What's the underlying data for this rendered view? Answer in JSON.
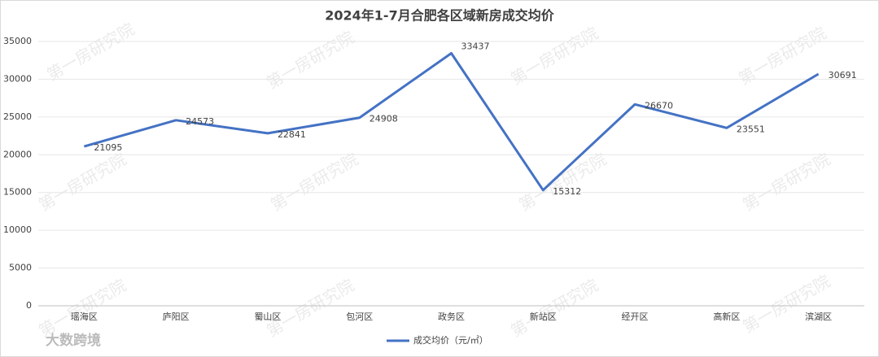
{
  "chart_data": {
    "type": "line",
    "title": "2024年1-7月合肥各区域新房成交均价",
    "categories": [
      "瑶海区",
      "庐阳区",
      "蜀山区",
      "包河区",
      "政务区",
      "新站区",
      "经开区",
      "高新区",
      "滨湖区"
    ],
    "series": [
      {
        "name": "成交均价（元/㎡）",
        "color": "#4472c4",
        "values": [
          21095,
          24573,
          22841,
          24908,
          33437,
          15312,
          26670,
          23551,
          30691
        ]
      }
    ],
    "ylim": [
      0,
      35000
    ],
    "yticks": [
      0,
      5000,
      10000,
      15000,
      20000,
      25000,
      30000,
      35000
    ],
    "grid": true,
    "legend": "bottom",
    "watermark": "第一房研究院",
    "logo": "大数跨境"
  }
}
